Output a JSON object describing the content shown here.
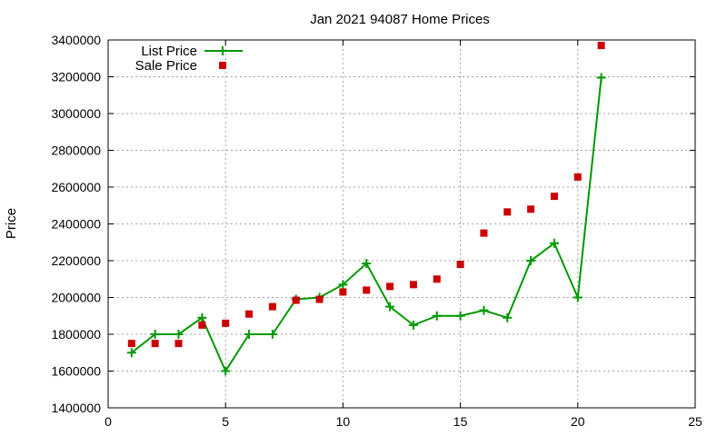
{
  "chart_data": {
    "type": "line",
    "title": "Jan 2021 94087 Home Prices",
    "xlabel": "",
    "ylabel": "Price",
    "xlim": [
      0,
      25
    ],
    "ylim": [
      1400000,
      3400000
    ],
    "x_ticks": [
      0,
      5,
      10,
      15,
      20,
      25
    ],
    "y_ticks": [
      1400000,
      1600000,
      1800000,
      2000000,
      2200000,
      2400000,
      2600000,
      2800000,
      3000000,
      3200000,
      3400000
    ],
    "grid": true,
    "legend_position": "top-left",
    "series": [
      {
        "name": "List Price",
        "style": "line-with-plus-markers",
        "color": "#009900",
        "x": [
          1,
          2,
          3,
          4,
          5,
          6,
          7,
          8,
          9,
          10,
          11,
          12,
          13,
          14,
          15,
          16,
          17,
          18,
          19,
          20,
          21
        ],
        "values": [
          1700000,
          1800000,
          1800000,
          1890000,
          1600000,
          1800000,
          1800000,
          1990000,
          2000000,
          2070000,
          2185000,
          1950000,
          1850000,
          1900000,
          1900000,
          1930000,
          1890000,
          2200000,
          2295000,
          2000000,
          3195000
        ]
      },
      {
        "name": "Sale Price",
        "style": "square-markers",
        "color": "#cc0000",
        "x": [
          1,
          2,
          3,
          4,
          5,
          6,
          7,
          8,
          9,
          10,
          11,
          12,
          13,
          14,
          15,
          16,
          17,
          18,
          19,
          20,
          21
        ],
        "values": [
          1750000,
          1750000,
          1750000,
          1850000,
          1860000,
          1910000,
          1950000,
          1985000,
          1990000,
          2030000,
          2040000,
          2060000,
          2070000,
          2100000,
          2180000,
          2350000,
          2465000,
          2480000,
          2550000,
          2655000,
          3370000
        ]
      }
    ]
  }
}
